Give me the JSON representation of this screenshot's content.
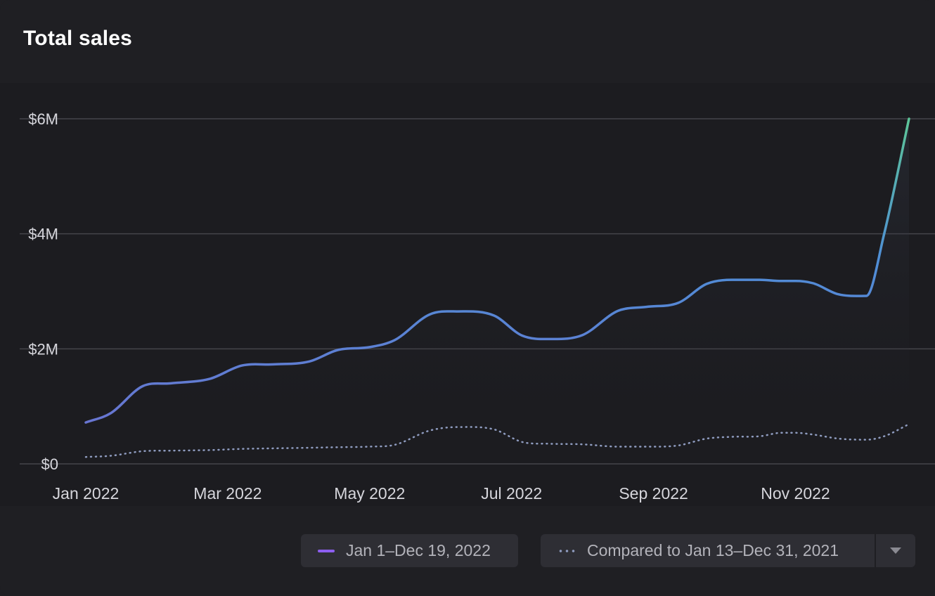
{
  "card": {
    "title": "Total sales"
  },
  "legend": {
    "current_label": "Jan 1–Dec 19, 2022",
    "compare_label": "Compared to Jan 13–Dec 31, 2021",
    "dropdown_icon": "caret-down-icon"
  },
  "colors": {
    "background": "#1f1f23",
    "grid": "#44444a",
    "axis_text": "#d6d6dc",
    "current_start": "#6e6fd0",
    "current_mid": "#4f8ed6",
    "current_peak": "#5fd08c",
    "compare_line": "#8f9cc0"
  },
  "chart_data": {
    "type": "line",
    "title": "Total sales",
    "xlabel": "",
    "ylabel": "",
    "ylim": [
      0,
      7000000
    ],
    "yticks": [
      {
        "value": 0,
        "label": "$0"
      },
      {
        "value": 2000000,
        "label": "$2M"
      },
      {
        "value": 4000000,
        "label": "$4M"
      },
      {
        "value": 6000000,
        "label": "$6M"
      }
    ],
    "xlim": [
      0,
      11.6
    ],
    "xticks": [
      {
        "value": 0,
        "label": "Jan 2022"
      },
      {
        "value": 2,
        "label": "Mar 2022"
      },
      {
        "value": 4,
        "label": "May 2022"
      },
      {
        "value": 6,
        "label": "Jul 2022"
      },
      {
        "value": 8,
        "label": "Sep 2022"
      },
      {
        "value": 10,
        "label": "Nov 2022"
      }
    ],
    "grid": true,
    "legend_position": "bottom-right",
    "series": [
      {
        "name": "Jan 1–Dec 19, 2022",
        "style": "solid",
        "x": [
          0,
          0.35,
          0.8,
          1.2,
          1.75,
          2.2,
          2.65,
          3.15,
          3.55,
          4.0,
          4.35,
          4.85,
          5.25,
          5.75,
          6.15,
          6.55,
          7.0,
          7.5,
          7.9,
          8.35,
          8.75,
          9.1,
          9.5,
          9.8,
          10.0,
          10.25,
          10.6,
          11.0,
          11.25,
          11.6
        ],
        "values": [
          720000,
          880000,
          1350000,
          1400000,
          1480000,
          1710000,
          1730000,
          1780000,
          1980000,
          2030000,
          2150000,
          2600000,
          2650000,
          2580000,
          2230000,
          2170000,
          2240000,
          2660000,
          2730000,
          2800000,
          3130000,
          3200000,
          3200000,
          3180000,
          3180000,
          3140000,
          2950000,
          2920000,
          4000000,
          6000000
        ]
      },
      {
        "name": "Compared to Jan 13–Dec 31, 2021",
        "style": "dotted",
        "x": [
          0,
          0.35,
          0.8,
          1.2,
          1.75,
          2.2,
          2.65,
          3.15,
          3.55,
          4.0,
          4.35,
          4.85,
          5.25,
          5.75,
          6.15,
          6.55,
          7.0,
          7.5,
          7.9,
          8.35,
          8.75,
          9.1,
          9.5,
          9.8,
          10.0,
          10.25,
          10.6,
          11.0,
          11.25,
          11.6
        ],
        "values": [
          120000,
          140000,
          220000,
          230000,
          240000,
          260000,
          270000,
          280000,
          290000,
          300000,
          330000,
          580000,
          640000,
          600000,
          380000,
          350000,
          340000,
          300000,
          300000,
          320000,
          440000,
          470000,
          480000,
          540000,
          540000,
          510000,
          440000,
          420000,
          480000,
          690000
        ]
      }
    ]
  }
}
